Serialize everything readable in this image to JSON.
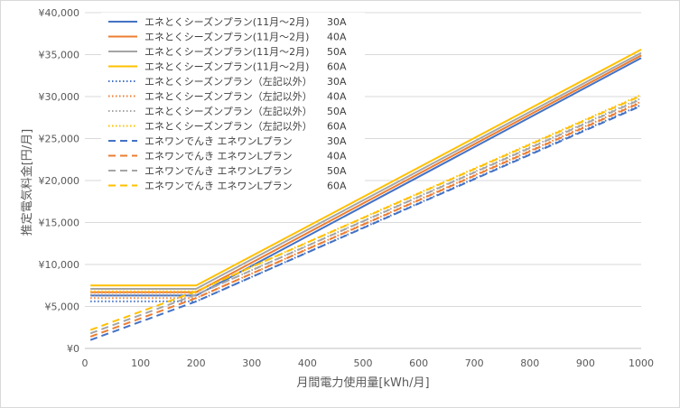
{
  "chart_data": {
    "type": "line",
    "xlabel": "月間電力使用量[kWh/月]",
    "ylabel": "推定電気料金[円/月]",
    "xlim": [
      0,
      1000
    ],
    "ylim": [
      0,
      40000
    ],
    "x_ticks": [
      "0",
      "100",
      "200",
      "300",
      "400",
      "500",
      "600",
      "700",
      "800",
      "900",
      "1000"
    ],
    "y_ticks": [
      "¥0",
      "¥5,000",
      "¥10,000",
      "¥15,000",
      "¥20,000",
      "¥25,000",
      "¥30,000",
      "¥35,000",
      "¥40,000"
    ],
    "grid": "horizontal",
    "legend_position": "top-left",
    "x": [
      10,
      200,
      1000
    ],
    "series": [
      {
        "name": "エネとくシーズンプラン(11月～2月)",
        "amp": "30A",
        "color": "#4472C4",
        "dash": "solid",
        "values": [
          6300,
          6300,
          34600
        ]
      },
      {
        "name": "エネとくシーズンプラン(11月～2月)",
        "amp": "40A",
        "color": "#ED7D31",
        "dash": "solid",
        "values": [
          6700,
          6700,
          34900
        ]
      },
      {
        "name": "エネとくシーズンプラン(11月～2月)",
        "amp": "50A",
        "color": "#A5A5A5",
        "dash": "solid",
        "values": [
          7100,
          7100,
          35200
        ]
      },
      {
        "name": "エネとくシーズンプラン(11月～2月)",
        "amp": "60A",
        "color": "#FFC000",
        "dash": "solid",
        "values": [
          7500,
          7500,
          35600
        ]
      },
      {
        "name": "エネとくシーズンプラン（左記以外）",
        "amp": "30A",
        "color": "#4472C4",
        "dash": "dotted",
        "values": [
          5600,
          5600,
          29000
        ]
      },
      {
        "name": "エネとくシーズンプラン（左記以外）",
        "amp": "40A",
        "color": "#ED7D31",
        "dash": "dotted",
        "values": [
          6000,
          6000,
          29400
        ]
      },
      {
        "name": "エネとくシーズンプラン（左記以外）",
        "amp": "50A",
        "color": "#A5A5A5",
        "dash": "dotted",
        "values": [
          6400,
          6400,
          29800
        ]
      },
      {
        "name": "エネとくシーズンプラン（左記以外）",
        "amp": "60A",
        "color": "#FFC000",
        "dash": "dotted",
        "values": [
          6800,
          6800,
          30200
        ]
      },
      {
        "name": "エネワンでんき エネワンLプラン",
        "amp": "30A",
        "color": "#4472C4",
        "dash": "dashed",
        "values": [
          1000,
          5600,
          28900
        ]
      },
      {
        "name": "エネワンでんき エネワンLプラン",
        "amp": "40A",
        "color": "#ED7D31",
        "dash": "dashed",
        "values": [
          1400,
          6000,
          29300
        ]
      },
      {
        "name": "エネワンでんき エネワンLプラン",
        "amp": "50A",
        "color": "#A5A5A5",
        "dash": "dashed",
        "values": [
          1800,
          6400,
          29700
        ]
      },
      {
        "name": "エネワンでんき エネワンLプラン",
        "amp": "60A",
        "color": "#FFC000",
        "dash": "dashed",
        "values": [
          2200,
          6800,
          30100
        ]
      }
    ]
  }
}
